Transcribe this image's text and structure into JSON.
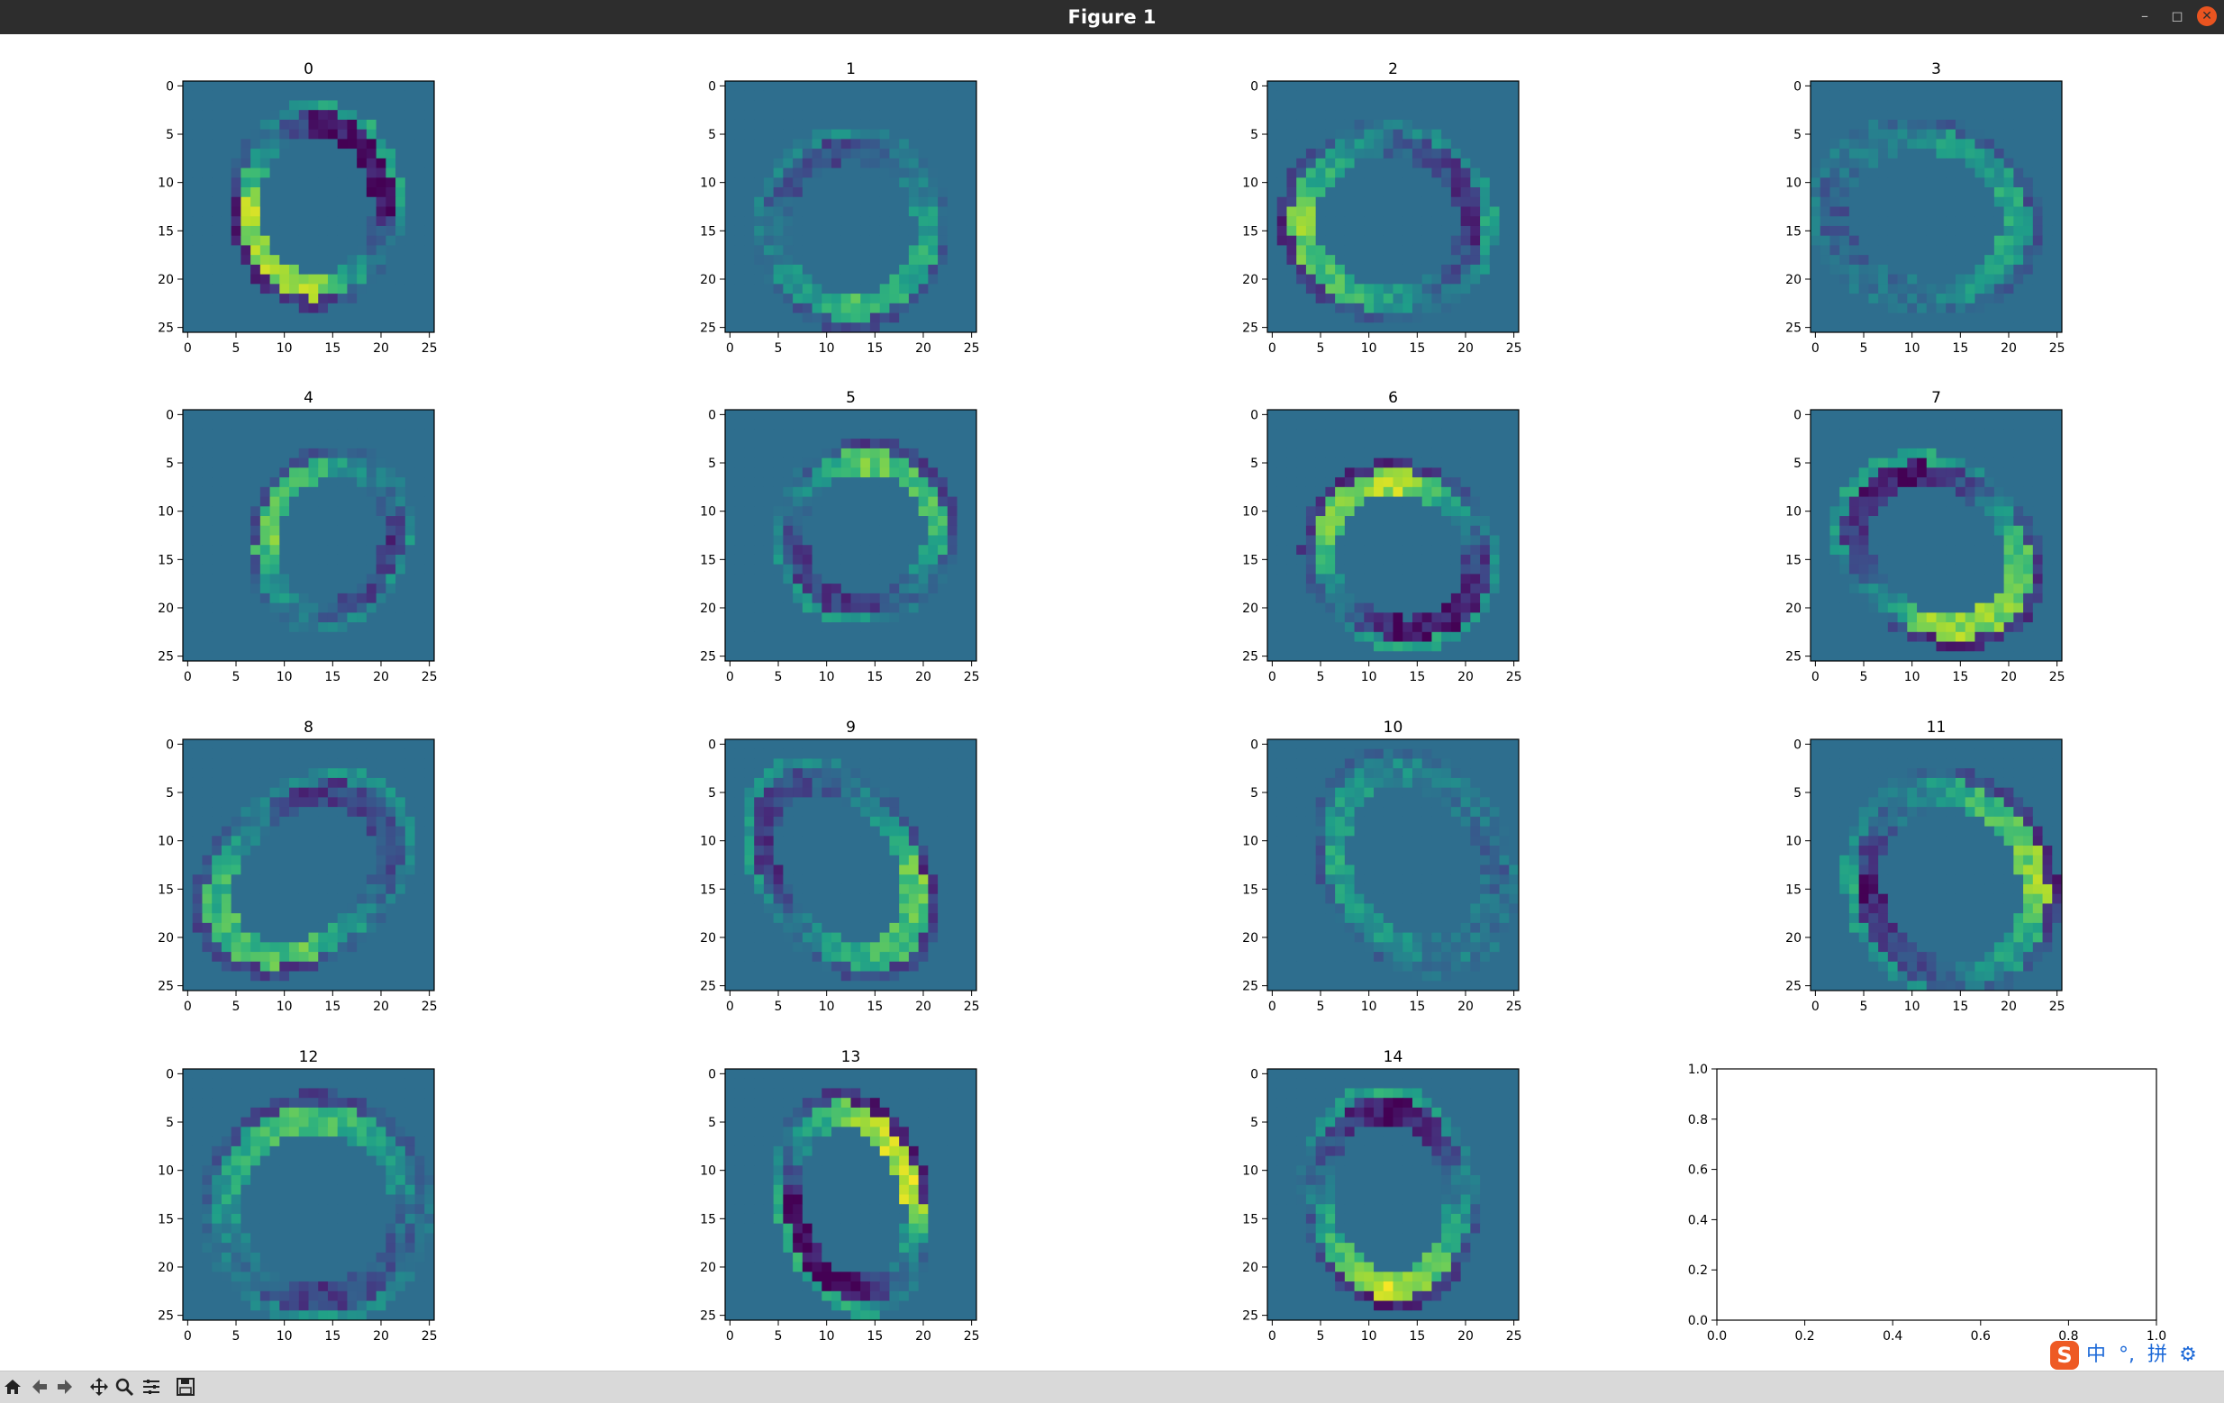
{
  "window": {
    "title": "Figure 1",
    "minimize_icon": "minimize-icon",
    "restore_icon": "restore-icon",
    "close_icon": "close-icon"
  },
  "figure": {
    "subplot_titles": [
      "0",
      "1",
      "2",
      "3",
      "4",
      "5",
      "6",
      "7",
      "8",
      "9",
      "10",
      "11",
      "12",
      "13",
      "14"
    ],
    "image_ticks": [
      "0",
      "5",
      "10",
      "15",
      "20",
      "25"
    ],
    "empty_axes": {
      "x_ticks": [
        "0.0",
        "0.2",
        "0.4",
        "0.6",
        "0.8",
        "1.0"
      ],
      "y_ticks": [
        "0.0",
        "0.2",
        "0.4",
        "0.6",
        "0.8",
        "1.0"
      ]
    },
    "colormap": "viridis",
    "image_size": 26
  },
  "toolbar": {
    "icons": [
      "home-icon",
      "back-icon",
      "forward-icon",
      "pan-icon",
      "zoom-icon",
      "configure-subplots-icon",
      "save-icon"
    ]
  },
  "ime": {
    "logo": "S",
    "lang": "中",
    "punct": "°,",
    "mode": "拼",
    "settings_icon": "gear-icon"
  },
  "colors": {
    "titlebar": "#2d2d2d",
    "close": "#e95420",
    "toolbar": "#d9d9d9",
    "ime_accent": "#1e6ad8"
  }
}
